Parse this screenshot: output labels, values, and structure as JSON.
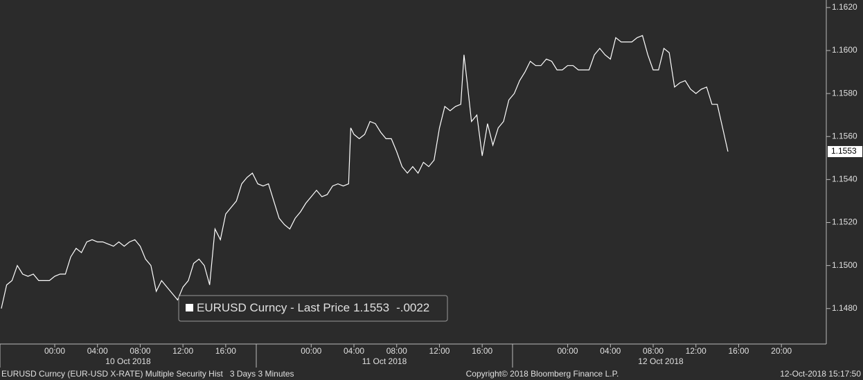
{
  "chart_data": {
    "type": "line",
    "x": [
      -5,
      -4.5,
      -4,
      -3.5,
      -3,
      -2.5,
      -2,
      -1.5,
      -1,
      -0.5,
      0,
      0.5,
      1,
      1.5,
      2,
      2.5,
      3,
      3.5,
      4,
      4.5,
      5,
      5.5,
      6,
      6.5,
      7,
      7.5,
      8,
      8.5,
      9,
      9.5,
      10,
      10.5,
      11,
      11.5,
      12,
      12.5,
      13,
      13.5,
      14,
      14.5,
      15,
      15.5,
      16,
      16.5,
      17,
      17.5,
      18,
      18.5,
      19,
      19.5,
      20,
      20.5,
      21,
      21.5,
      22,
      22.5,
      23,
      23.5,
      24,
      24.5,
      25,
      25.5,
      26,
      26.5,
      27,
      27.5,
      27.7,
      28,
      28.5,
      29,
      29.5,
      30,
      30.5,
      31,
      31.5,
      32,
      32.5,
      33,
      33.5,
      34,
      34.5,
      35,
      35.5,
      36,
      36.5,
      37,
      37.5,
      38,
      38.3,
      38.6,
      39,
      39.5,
      40,
      40.5,
      41,
      41.5,
      42,
      42.5,
      43,
      43.5,
      44,
      44.5,
      45,
      45.5,
      46,
      46.5,
      47,
      47.5,
      48,
      48.5,
      49,
      49.5,
      50,
      50.5,
      51,
      51.5,
      52,
      52.5,
      53,
      53.5,
      54,
      54.5,
      55,
      55.5,
      56,
      56.5,
      57,
      57.5,
      58,
      58.5,
      59,
      59.5,
      60,
      60.5,
      61,
      61.5,
      62,
      62.5,
      63
    ],
    "series": [
      {
        "name": "EURUSD Curncy - Last Price",
        "color": "#ffffff",
        "values": [
          1.148,
          1.1491,
          1.1493,
          1.15,
          1.1496,
          1.1495,
          1.1496,
          1.1493,
          1.1493,
          1.1493,
          1.1495,
          1.1496,
          1.1496,
          1.1504,
          1.1508,
          1.1506,
          1.1511,
          1.1512,
          1.1511,
          1.1511,
          1.151,
          1.1509,
          1.1511,
          1.1509,
          1.1511,
          1.1512,
          1.1509,
          1.1503,
          1.15,
          1.1488,
          1.1493,
          1.149,
          1.1487,
          1.1484,
          1.149,
          1.1493,
          1.1501,
          1.1503,
          1.15,
          1.1491,
          1.1517,
          1.1512,
          1.1524,
          1.1527,
          1.153,
          1.1538,
          1.1541,
          1.1543,
          1.1538,
          1.1537,
          1.1538,
          1.153,
          1.1522,
          1.1519,
          1.1517,
          1.1522,
          1.1525,
          1.1529,
          1.1532,
          1.1535,
          1.1532,
          1.1533,
          1.1537,
          1.1538,
          1.1537,
          1.1538,
          1.1564,
          1.1561,
          1.1559,
          1.1561,
          1.1567,
          1.1566,
          1.1562,
          1.1559,
          1.1559,
          1.1553,
          1.1546,
          1.1543,
          1.1546,
          1.1543,
          1.1548,
          1.1546,
          1.1549,
          1.1564,
          1.1574,
          1.1572,
          1.1574,
          1.1575,
          1.1598,
          1.1585,
          1.1567,
          1.157,
          1.1551,
          1.1566,
          1.1556,
          1.1564,
          1.1567,
          1.1577,
          1.158,
          1.1586,
          1.159,
          1.1595,
          1.1593,
          1.1593,
          1.1596,
          1.1595,
          1.1591,
          1.1591,
          1.1593,
          1.1593,
          1.1591,
          1.1591,
          1.1591,
          1.1598,
          1.1601,
          1.1598,
          1.1596,
          1.1606,
          1.1604,
          1.1604,
          1.1604,
          1.1606,
          1.1607,
          1.1598,
          1.1591,
          1.1591,
          1.1601,
          1.1599,
          1.1583,
          1.1585,
          1.1586,
          1.1582,
          1.158,
          1.1582,
          1.1583,
          1.1575,
          1.1575,
          1.1564,
          1.1553
        ]
      }
    ],
    "change_label": "-.0022",
    "xlim": [
      -5.12,
      72.2
    ],
    "xticks": [
      {
        "value": 0,
        "label": "00:00"
      },
      {
        "value": 4,
        "label": "04:00"
      },
      {
        "value": 8,
        "label": "08:00"
      },
      {
        "value": 12,
        "label": "12:00"
      },
      {
        "value": 16,
        "label": "16:00"
      },
      {
        "value": 24,
        "label": "00:00"
      },
      {
        "value": 28,
        "label": "04:00"
      },
      {
        "value": 32,
        "label": "08:00"
      },
      {
        "value": 36,
        "label": "12:00"
      },
      {
        "value": 40,
        "label": "16:00"
      },
      {
        "value": 48,
        "label": "00:00"
      },
      {
        "value": 52,
        "label": "04:00"
      },
      {
        "value": 56,
        "label": "08:00"
      },
      {
        "value": 60,
        "label": "12:00"
      },
      {
        "value": 64,
        "label": "16:00"
      },
      {
        "value": 68,
        "label": "20:00"
      }
    ],
    "day_labels": [
      "10 Oct 2018",
      "11 Oct 2018",
      "12 Oct 2018"
    ],
    "ylim": [
      1.14635,
      1.16235
    ],
    "yticks": [
      {
        "value": 1.148,
        "label": "1.1480"
      },
      {
        "value": 1.15,
        "label": "1.1500"
      },
      {
        "value": 1.152,
        "label": "1.1520"
      },
      {
        "value": 1.154,
        "label": "1.1540"
      },
      {
        "value": 1.156,
        "label": "1.1560"
      },
      {
        "value": 1.158,
        "label": "1.1580"
      },
      {
        "value": 1.16,
        "label": "1.1600"
      },
      {
        "value": 1.162,
        "label": "1.1620"
      }
    ],
    "footer": {
      "left": "EURUSD Curncy (EUR-USD X-RATE) Multiple Security Hist   3 Days 3 Minutes",
      "center": "Copyright© 2018 Bloomberg Finance L.P.",
      "right": "12-Oct-2018 15:17:50"
    }
  }
}
